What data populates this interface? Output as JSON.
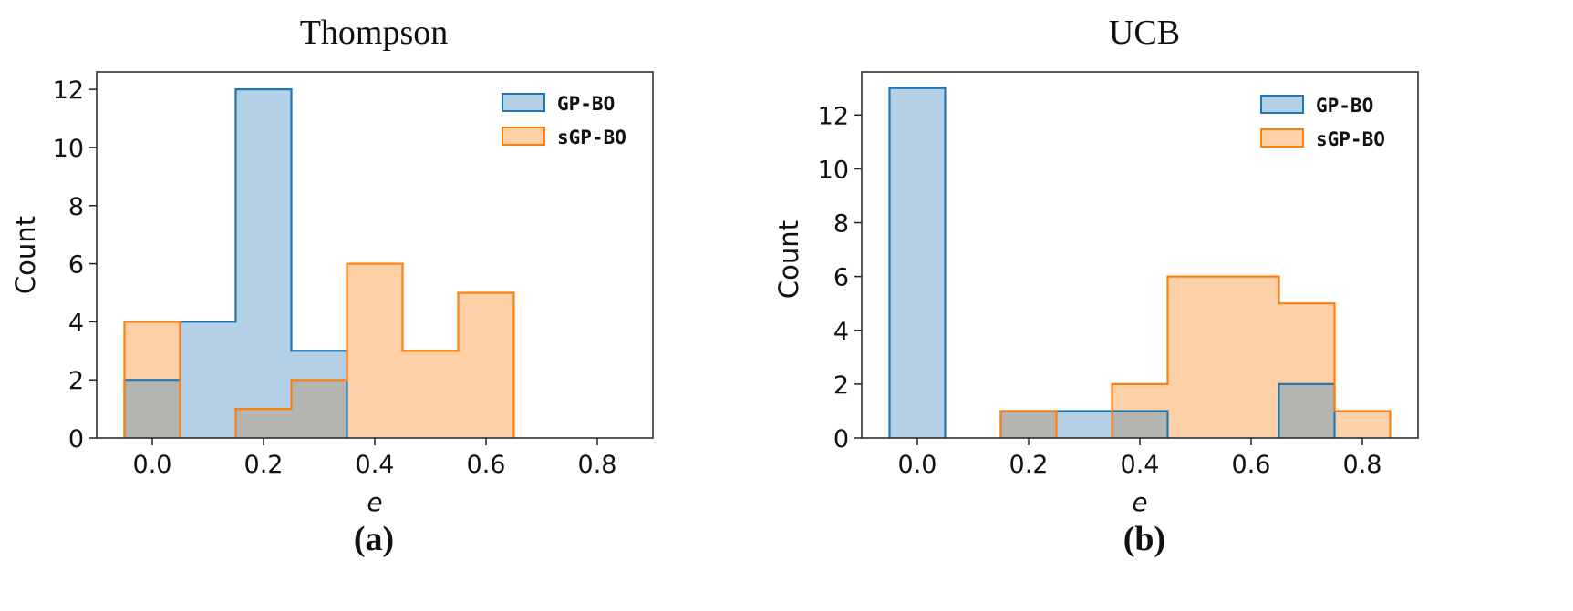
{
  "chart_data": [
    {
      "type": "bar",
      "subtype": "histogram-overlay",
      "title": "Thompson",
      "caption": "(a)",
      "xlabel": "e",
      "ylabel": "Count",
      "xlim": [
        -0.1,
        0.9
      ],
      "ylim": [
        0,
        12.6
      ],
      "xticks": [
        "0.0",
        "0.2",
        "0.4",
        "0.6",
        "0.8"
      ],
      "yticks": [
        "0",
        "2",
        "4",
        "6",
        "8",
        "10",
        "12"
      ],
      "bin_edges": [
        -0.05,
        0.05,
        0.15,
        0.25,
        0.35,
        0.45,
        0.55,
        0.65,
        0.75,
        0.85
      ],
      "legend_position": "top-right",
      "grid": false,
      "series": [
        {
          "name": "GP-BO",
          "color": "#1f77b4",
          "fill": "#b4d0e6",
          "counts": [
            2,
            4,
            12,
            3,
            0,
            0,
            0,
            0,
            0
          ]
        },
        {
          "name": "sGP-BO",
          "color": "#ff7f0e",
          "fill": "#fdd0a8",
          "counts": [
            4,
            0,
            1,
            2,
            6,
            3,
            5,
            0,
            0
          ]
        }
      ]
    },
    {
      "type": "bar",
      "subtype": "histogram-overlay",
      "title": "UCB",
      "caption": "(b)",
      "xlabel": "e",
      "ylabel": "Count",
      "xlim": [
        -0.1,
        0.9
      ],
      "ylim": [
        0,
        13.6
      ],
      "xticks": [
        "0.0",
        "0.2",
        "0.4",
        "0.6",
        "0.8"
      ],
      "yticks": [
        "0",
        "2",
        "4",
        "6",
        "8",
        "10",
        "12"
      ],
      "bin_edges": [
        -0.05,
        0.05,
        0.15,
        0.25,
        0.35,
        0.45,
        0.55,
        0.65,
        0.75,
        0.85
      ],
      "legend_position": "top-right",
      "grid": false,
      "series": [
        {
          "name": "GP-BO",
          "color": "#1f77b4",
          "fill": "#b4d0e6",
          "counts": [
            13,
            0,
            1,
            1,
            1,
            0,
            0,
            2,
            0
          ]
        },
        {
          "name": "sGP-BO",
          "color": "#ff7f0e",
          "fill": "#fdd0a8",
          "counts": [
            0,
            0,
            1,
            0,
            2,
            6,
            6,
            5,
            1
          ]
        }
      ]
    }
  ],
  "overlap_fill": "#b4b4b0"
}
